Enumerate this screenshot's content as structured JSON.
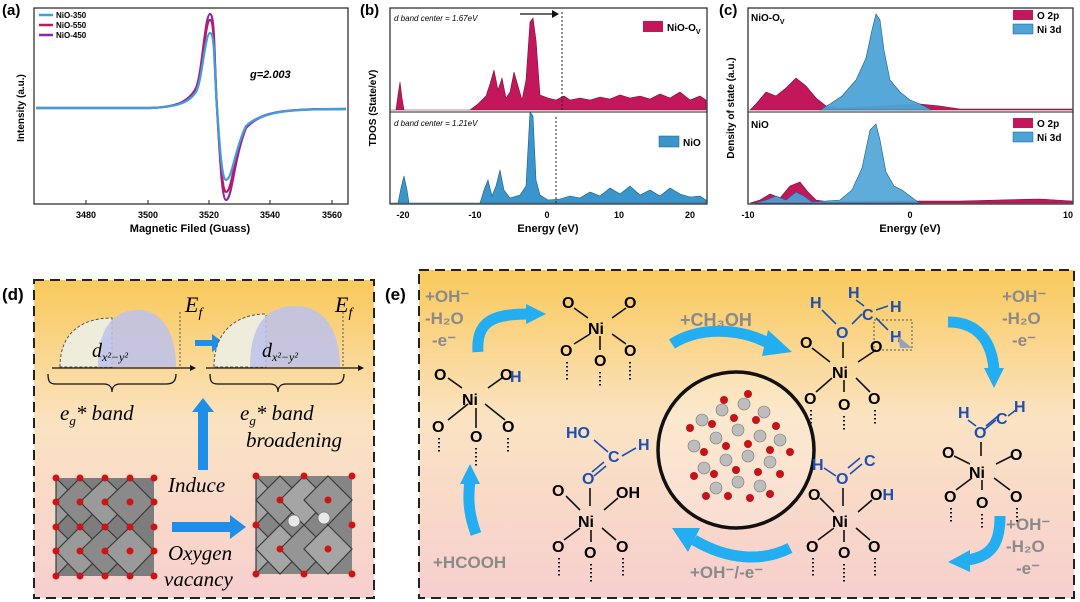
{
  "panel_a": {
    "label": "(a)",
    "ylabel": "Intensity (a.u.)",
    "xlabel": "Magnetic Filed (Guass)",
    "annotation": "g=2.003",
    "legend": [
      "NiO-350",
      "NiO-550",
      "NiO-450"
    ],
    "colors": {
      "NiO-350": "#3aa1e0",
      "NiO-550": "#c2185b",
      "NiO-450": "#8e24aa"
    },
    "xticks": [
      "3480",
      "3500",
      "3520",
      "3540",
      "3560"
    ]
  },
  "panel_b": {
    "label": "(b)",
    "ylabel": "TDOS (State/eV)",
    "xlabel": "Energy (eV)",
    "top_note": "d band center = 1.67eV",
    "bottom_note": "d band center = 1.21eV",
    "legend_top": "NiO-O",
    "legend_top_sub": "V",
    "legend_bottom": "NiO",
    "xticks": [
      "-20",
      "-10",
      "0",
      "10",
      "20"
    ],
    "colors": {
      "top": "#c2185b",
      "bottom": "#3a95cc"
    }
  },
  "panel_c": {
    "label": "(c)",
    "ylabel": "Density of state (a.u.)",
    "xlabel": "Energy (eV)",
    "top_title": "NiO-O",
    "top_title_sub": "V",
    "bottom_title": "NiO",
    "legend": [
      "O 2p",
      "Ni 3d"
    ],
    "xticks": [
      "-10",
      "-5",
      "0",
      "5",
      "10"
    ],
    "colors": {
      "O 2p": "#c2185b",
      "Ni 3d": "#4da3d6"
    }
  },
  "panel_d": {
    "label": "(d)",
    "ef": "E",
    "ef_sub": "f",
    "orbital": "d",
    "band_left": "e",
    "band_left_sub": "g",
    "band_left_rest": "* band",
    "band_right_line2": "broadening",
    "induce": "Induce",
    "oxygen_vacancy_1": "Oxygen",
    "oxygen_vacancy_2": "vacancy"
  },
  "panel_e": {
    "label": "(e)",
    "step1": [
      "+OH⁻",
      "-H₂O",
      "-e⁻"
    ],
    "step2": "+CH₃OH",
    "step3": [
      "+OH⁻",
      "-H₂O",
      "-e⁻"
    ],
    "step4": [
      "+OH⁻",
      "-H₂O",
      "-e⁻"
    ],
    "step5": "+OH⁻/-e⁻",
    "step6": "+HCOOH",
    "atoms": {
      "ni": "Ni",
      "o": "O",
      "h": "H",
      "c": "C",
      "oh": "OH",
      "ho": "HO"
    }
  }
}
